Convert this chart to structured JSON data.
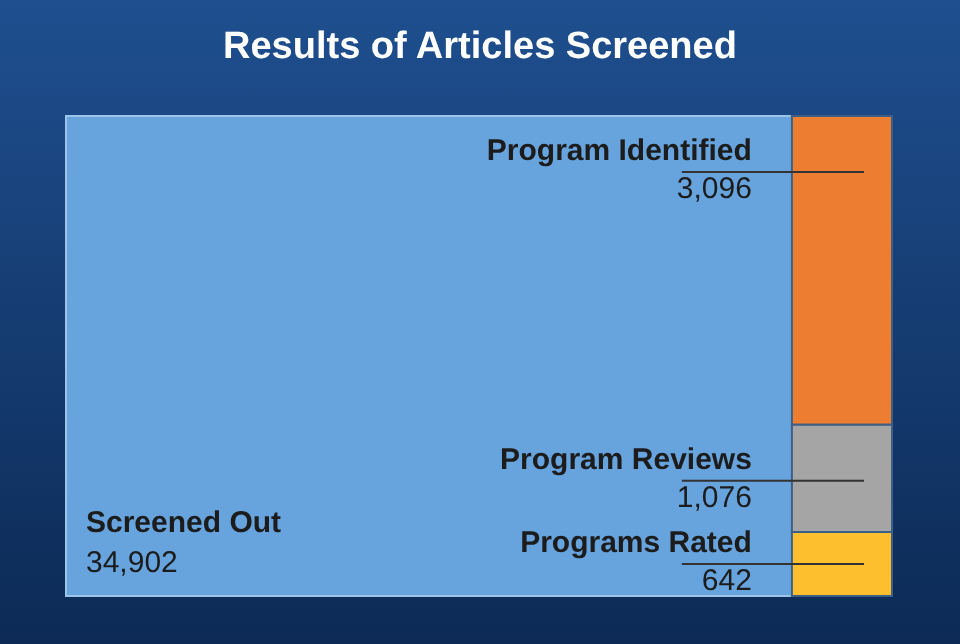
{
  "chart_data": {
    "type": "other",
    "title": "Results of Articles Screened",
    "categories": [
      "Screened Out",
      "Program Identified",
      "Program Reviews",
      "Programs Rated"
    ],
    "values": [
      34902,
      3096,
      1076,
      642
    ],
    "value_labels": [
      "34,902",
      "3,096",
      "1,076",
      "642"
    ],
    "colors": [
      "#67a3dc",
      "#ed7d31",
      "#a5a5a5",
      "#fdbf2d"
    ]
  }
}
